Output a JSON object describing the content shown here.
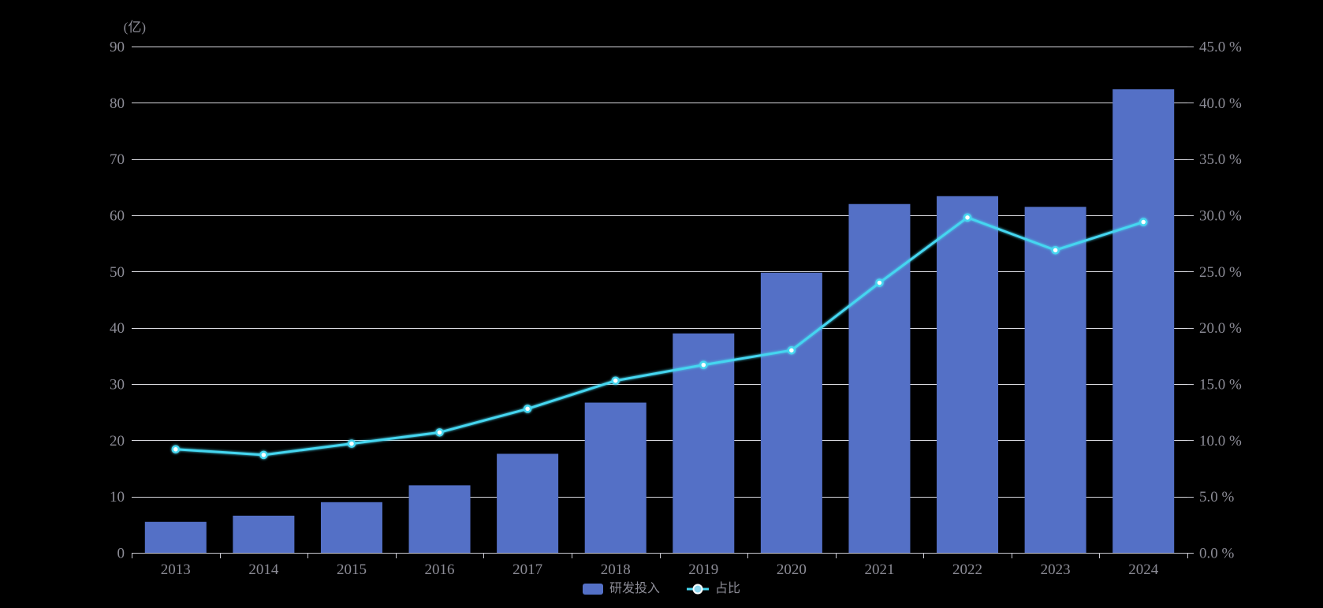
{
  "legend": {
    "items": [
      {
        "label": "研发投入",
        "type": "bar"
      },
      {
        "label": "占比",
        "type": "line"
      }
    ]
  },
  "colors": {
    "background": "#000000",
    "bar": "#5470C6",
    "line": "#45D6F0",
    "marker_fill": "#FFFFFF",
    "legend_dot_fill": "#8FD8F0",
    "legend_dot_ring": "#FFFFFF",
    "grid_line": "#D9D9DF",
    "axis_line": "#C9C9D1",
    "axis_label": "#8C8C96"
  },
  "chart_data": {
    "type": "bar",
    "subtype": "combo-bar-line-dual-axis",
    "categories": [
      "2013",
      "2014",
      "2015",
      "2016",
      "2017",
      "2018",
      "2019",
      "2020",
      "2021",
      "2022",
      "2023",
      "2024"
    ],
    "series": [
      {
        "name": "研发投入",
        "type": "bar",
        "axis": "left",
        "values": [
          5.5,
          6.6,
          9.0,
          12.0,
          17.6,
          26.7,
          39.0,
          49.8,
          62.0,
          63.4,
          61.5,
          82.4
        ]
      },
      {
        "name": "占比",
        "type": "line",
        "axis": "right",
        "values": [
          9.2,
          8.7,
          9.7,
          10.7,
          12.8,
          15.3,
          16.7,
          18.0,
          24.0,
          29.8,
          26.9,
          29.4
        ]
      }
    ],
    "left_axis": {
      "title": "(亿)",
      "min": 0,
      "max": 90,
      "step": 10,
      "tick_labels": [
        "0",
        "10",
        "20",
        "30",
        "40",
        "50",
        "60",
        "70",
        "80",
        "90"
      ]
    },
    "right_axis": {
      "min": 0,
      "max": 45,
      "step": 5,
      "tick_labels": [
        "0.0 %",
        "5.0 %",
        "10.0 %",
        "15.0 %",
        "20.0 %",
        "25.0 %",
        "30.0 %",
        "35.0 %",
        "40.0 %",
        "45.0 %"
      ]
    },
    "grid": "horizontal-only",
    "legend_position": "bottom-center",
    "background": "black"
  }
}
